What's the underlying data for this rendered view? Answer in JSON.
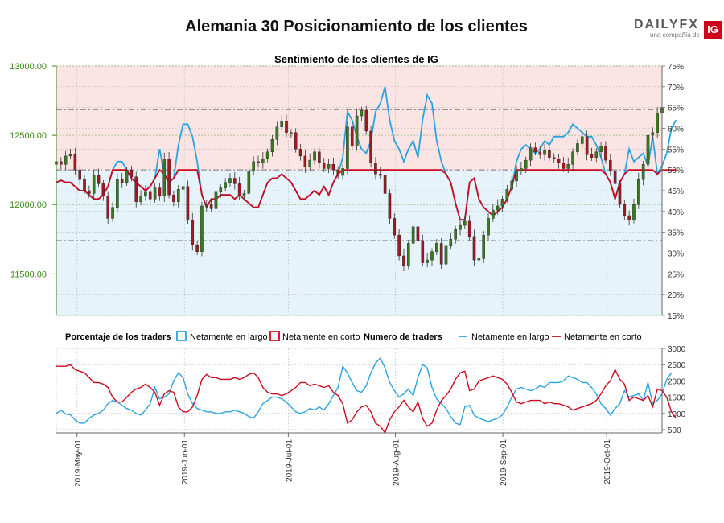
{
  "page_title": "Alemania 30 Posicionamiento de los clientes",
  "logo": {
    "brand": "DAILYFX",
    "sub": "una compañía de",
    "badge": "IG"
  },
  "colors": {
    "long": "#2aa3e0",
    "short": "#cc0a1f",
    "up": "#3a7a1e",
    "down": "#a01820",
    "long_fill": "#e6f3fb",
    "short_fill": "#fbe4e4",
    "price_axis": "#3a8a1a"
  },
  "chart_data": [
    {
      "type": "candlestick",
      "title": "Sentimiento de los clientes de IG",
      "y_left": {
        "ticks": [
          "11500.00",
          "12000.00",
          "12500.00",
          "13000.00"
        ],
        "range": [
          11200,
          13000
        ]
      },
      "y_right": {
        "ticks": [
          "15%",
          "20%",
          "25%",
          "30%",
          "35%",
          "40%",
          "45%",
          "50%",
          "55%",
          "60%",
          "65%",
          "70%",
          "75%"
        ],
        "range": [
          15,
          75
        ]
      },
      "reference_lines": [
        50,
        64.5,
        33
      ],
      "x_ticks": [
        "2019-May-01",
        "2019-Jun-01",
        "2019-Jul-01",
        "2019-Aug-01",
        "2019-Sep-01",
        "2019-Oct-01"
      ],
      "x_range": [
        "2019-04-25",
        "2019-10-17"
      ],
      "price_daily": [
        12310,
        12290,
        12350,
        12360,
        12250,
        12180,
        12100,
        12080,
        12210,
        12150,
        12060,
        11900,
        11980,
        12180,
        12160,
        12250,
        12200,
        12020,
        12060,
        12090,
        12040,
        12120,
        12060,
        12330,
        12070,
        12020,
        12110,
        12130,
        11890,
        11710,
        11660,
        11990,
        12000,
        11970,
        12090,
        12120,
        12160,
        12190,
        12150,
        12060,
        12080,
        12240,
        12310,
        12300,
        12330,
        12380,
        12470,
        12560,
        12600,
        12520,
        12520,
        12400,
        12350,
        12270,
        12320,
        12380,
        12300,
        12260,
        12290,
        12250,
        12210,
        12260,
        12560,
        12420,
        12640,
        12680,
        12530,
        12300,
        12220,
        12210,
        12080,
        11900,
        11780,
        11630,
        11560,
        11720,
        11840,
        11740,
        11580,
        11600,
        11660,
        11720,
        11570,
        11700,
        11750,
        11820,
        11850,
        11880,
        11770,
        11600,
        11610,
        11780,
        11900,
        11960,
        11990,
        12040,
        12110,
        12170,
        12240,
        12260,
        12320,
        12410,
        12380,
        12360,
        12390,
        12340,
        12330,
        12300,
        12260,
        12290,
        12380,
        12440,
        12490,
        12360,
        12340,
        12380,
        12420,
        12320,
        12240,
        12150,
        12000,
        11920,
        11890,
        12000,
        12180,
        12290,
        12500,
        12520,
        12660,
        12700
      ],
      "long_pct": [
        47,
        47.5,
        47,
        47,
        46,
        45,
        45,
        44,
        43,
        43,
        44,
        46,
        50,
        52,
        52,
        50,
        48,
        47,
        46,
        45,
        46,
        48,
        55,
        49,
        47,
        48,
        56,
        61,
        61,
        58,
        52,
        44,
        41,
        43,
        43,
        44,
        44,
        44,
        43,
        44,
        43,
        42,
        41,
        41,
        44,
        47,
        48,
        48,
        49,
        48,
        47,
        45,
        43,
        43,
        44,
        45,
        44,
        46,
        44,
        47,
        49,
        53,
        64,
        62,
        58,
        55,
        54,
        57,
        64,
        66,
        70,
        62,
        57,
        55,
        52,
        55,
        57,
        53,
        62,
        68,
        66,
        57,
        52,
        49,
        47,
        42,
        38,
        38,
        47,
        48,
        43,
        41,
        40,
        39,
        40,
        41,
        43,
        46,
        52,
        55,
        56,
        55,
        54,
        55,
        57,
        56,
        58,
        58,
        58,
        59,
        61,
        60,
        59,
        58,
        58,
        56,
        53,
        49,
        47,
        43,
        47,
        49,
        55,
        52,
        53,
        54,
        51,
        58,
        49,
        51,
        54,
        60,
        62
      ]
    },
    {
      "type": "line",
      "legend_left": {
        "title": "Porcentaje de los traders",
        "long": "Netamente en largo",
        "short": "Netamente en corto"
      },
      "legend_right": {
        "title": "Numero de traders",
        "long": "Netamente en largo",
        "short": "Netamente en corto"
      },
      "y_right": {
        "ticks": [
          "500",
          "1000",
          "1500",
          "2000",
          "2500",
          "3000"
        ],
        "range": [
          400,
          3000
        ]
      },
      "long_count": [
        1000,
        1100,
        980,
        960,
        800,
        700,
        700,
        850,
        950,
        1000,
        1100,
        1300,
        1400,
        1350,
        1250,
        1150,
        1100,
        1000,
        950,
        1100,
        1300,
        1800,
        1450,
        1500,
        1600,
        2000,
        2250,
        2100,
        1600,
        1300,
        1150,
        1100,
        1050,
        1050,
        1000,
        1000,
        1050,
        1050,
        1100,
        1050,
        1000,
        900,
        850,
        1050,
        1300,
        1400,
        1500,
        1500,
        1450,
        1350,
        1200,
        1050,
        1000,
        1050,
        1150,
        1100,
        1200,
        1100,
        1300,
        1550,
        1800,
        2450,
        2250,
        1950,
        1700,
        1650,
        1850,
        2250,
        2550,
        2700,
        2400,
        1950,
        1700,
        1500,
        1600,
        1750,
        1550,
        2100,
        2500,
        2400,
        1800,
        1450,
        1300,
        1150,
        900,
        700,
        650,
        1200,
        1250,
        950,
        850,
        800,
        750,
        800,
        850,
        950,
        1200,
        1500,
        1750,
        1800,
        1750,
        1700,
        1750,
        1850,
        1800,
        1950,
        1950,
        1950,
        2000,
        2150,
        2100,
        2050,
        1950,
        1950,
        1800,
        1600,
        1300,
        1150,
        950,
        1150,
        1300,
        1700,
        1500,
        1550,
        1600,
        1400,
        1950,
        1300,
        1400,
        1600,
        2050,
        2250
      ],
      "short_count": [
        2450,
        2450,
        2450,
        2500,
        2350,
        2300,
        2250,
        2100,
        1950,
        1950,
        1900,
        1800,
        1500,
        1350,
        1350,
        1500,
        1650,
        1750,
        1800,
        1900,
        1800,
        1650,
        1250,
        1600,
        1700,
        1650,
        1200,
        1050,
        1050,
        1200,
        1550,
        2050,
        2200,
        2100,
        2100,
        2050,
        2050,
        2050,
        2100,
        2050,
        2100,
        2200,
        2250,
        2100,
        1800,
        1650,
        1600,
        1600,
        1550,
        1600,
        1700,
        1800,
        1950,
        1950,
        1850,
        1900,
        1850,
        1800,
        1850,
        1650,
        1550,
        1300,
        700,
        800,
        1050,
        1200,
        1250,
        1050,
        700,
        600,
        400,
        800,
        1050,
        1200,
        1400,
        1200,
        1050,
        1350,
        850,
        600,
        700,
        1100,
        1400,
        1550,
        1750,
        2050,
        2250,
        2300,
        1700,
        1750,
        2000,
        2050,
        2100,
        2150,
        2100,
        2050,
        1900,
        1650,
        1350,
        1300,
        1350,
        1400,
        1400,
        1400,
        1300,
        1350,
        1300,
        1300,
        1250,
        1200,
        1100,
        1150,
        1200,
        1250,
        1300,
        1400,
        1600,
        1850,
        2000,
        2350,
        2050,
        1900,
        1400,
        1500,
        1450,
        1400,
        1550,
        1200,
        1750,
        1700,
        1500,
        1050,
        850
      ]
    }
  ]
}
